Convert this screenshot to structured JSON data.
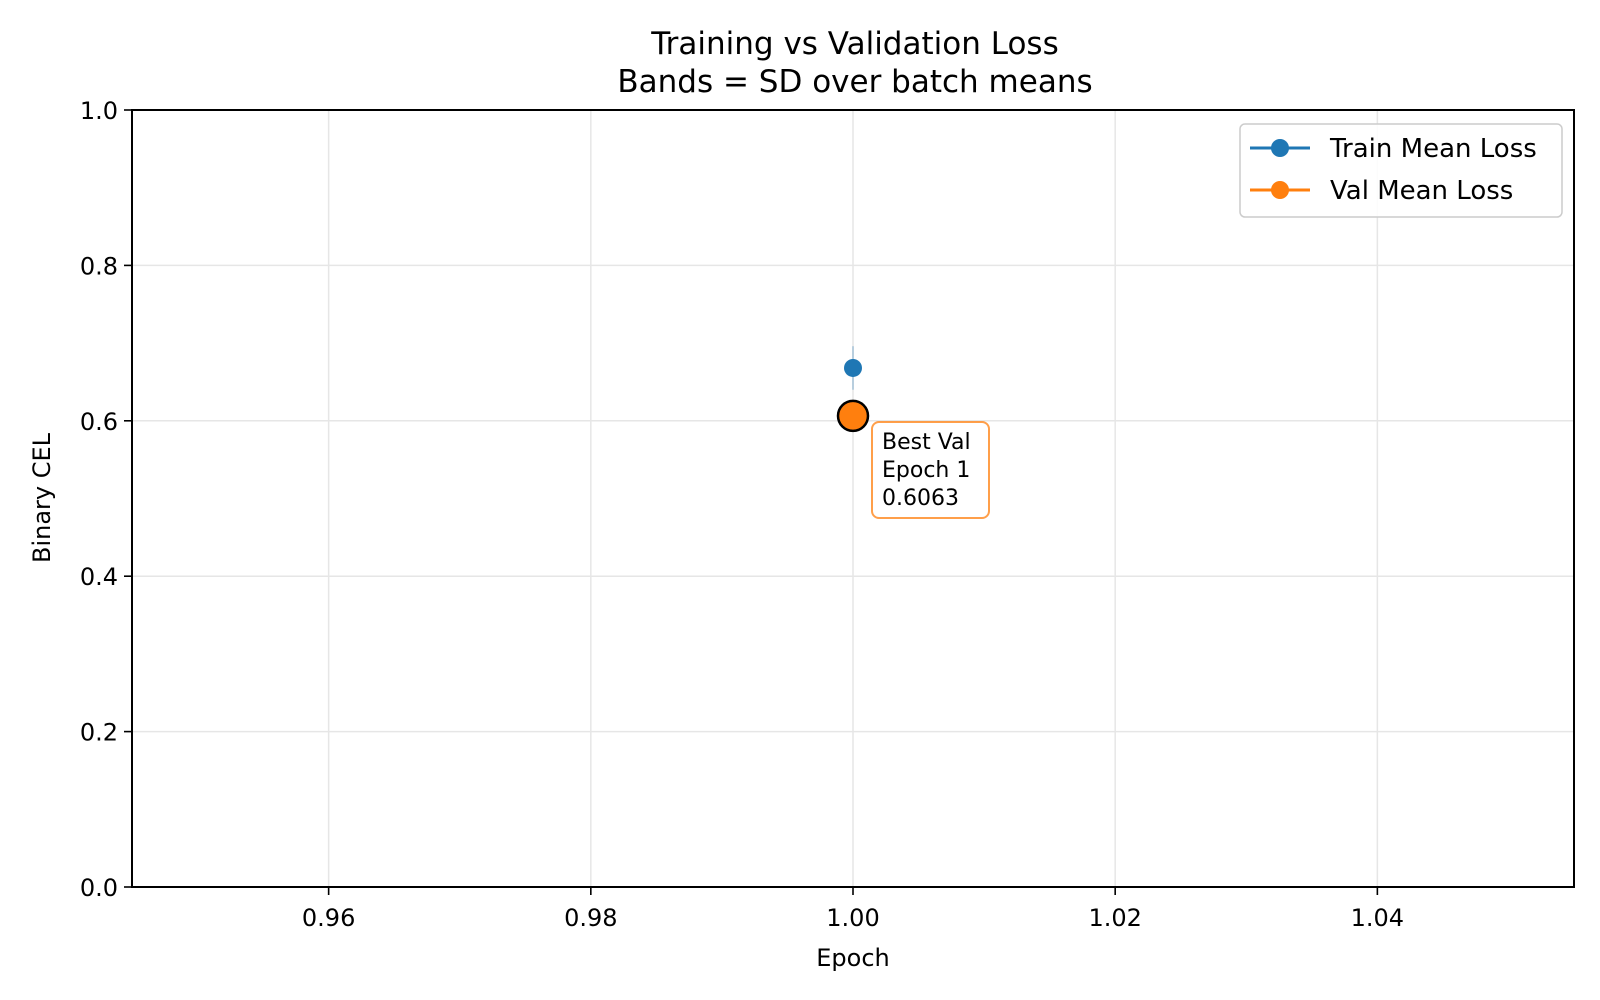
{
  "chart_data": {
    "type": "line",
    "title": "Training vs Validation Loss",
    "subtitle": "Bands = SD over batch means",
    "xlabel": "Epoch",
    "ylabel": "Binary CEL",
    "xlim": [
      0.945,
      1.055
    ],
    "ylim": [
      0.0,
      1.0
    ],
    "xticks": [
      0.96,
      0.98,
      1.0,
      1.02,
      1.04
    ],
    "xtick_labels": [
      "0.96",
      "0.98",
      "1.00",
      "1.02",
      "1.04"
    ],
    "yticks": [
      0.0,
      0.2,
      0.4,
      0.6,
      0.8,
      1.0
    ],
    "ytick_labels": [
      "0.0",
      "0.2",
      "0.4",
      "0.6",
      "0.8",
      "1.0"
    ],
    "grid": true,
    "legend_position": "top-right",
    "series": [
      {
        "name": "Train Mean Loss",
        "color": "#1f77b4",
        "x": [
          1.0
        ],
        "y": [
          0.668
        ],
        "band_low": [
          0.64
        ],
        "band_high": [
          0.696
        ]
      },
      {
        "name": "Val Mean Loss",
        "color": "#ff7f0e",
        "x": [
          1.0
        ],
        "y": [
          0.6063
        ]
      }
    ],
    "best_point": {
      "x": 1.0,
      "y": 0.6063,
      "color": "#ff7f0e",
      "label_lines": [
        "Best Val",
        "Epoch 1",
        "0.6063"
      ]
    }
  }
}
